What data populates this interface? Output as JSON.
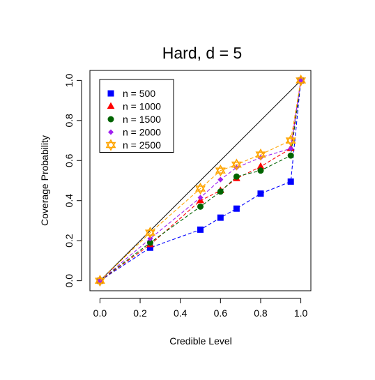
{
  "chart_data": {
    "type": "line",
    "title": "Hard, d = 5",
    "xlabel": "Credible Level",
    "ylabel": "Coverage Probability",
    "xlim": [
      -0.05,
      1.05
    ],
    "ylim": [
      -0.05,
      1.05
    ],
    "xticks": [
      "0.0",
      "0.2",
      "0.4",
      "0.6",
      "0.8",
      "1.0"
    ],
    "yticks": [
      "0.0",
      "0.2",
      "0.4",
      "0.6",
      "0.8",
      "1.0"
    ],
    "grid": false,
    "legend_position": "top-left",
    "reference_line": [
      [
        0,
        0
      ],
      [
        1,
        1
      ]
    ],
    "x": [
      0.0,
      0.25,
      0.5,
      0.6,
      0.68,
      0.8,
      0.95,
      1.0
    ],
    "series": [
      {
        "name": "n = 500",
        "color": "#0000ff",
        "marker": "square",
        "values": [
          0.0,
          0.165,
          0.255,
          0.315,
          0.36,
          0.435,
          0.495,
          1.0
        ]
      },
      {
        "name": "n = 1000",
        "color": "#ff0000",
        "marker": "triangle",
        "values": [
          0.0,
          0.18,
          0.4,
          0.45,
          0.51,
          0.57,
          0.66,
          1.0
        ]
      },
      {
        "name": "n = 1500",
        "color": "#006400",
        "marker": "circle",
        "values": [
          0.0,
          0.19,
          0.37,
          0.445,
          0.52,
          0.55,
          0.625,
          1.0
        ]
      },
      {
        "name": "n = 2000",
        "color": "#a020f0",
        "marker": "diamond",
        "values": [
          0.0,
          0.21,
          0.415,
          0.505,
          0.565,
          0.615,
          0.66,
          1.0
        ]
      },
      {
        "name": "n = 2500",
        "color": "#ffa500",
        "marker": "star",
        "values": [
          0.0,
          0.24,
          0.46,
          0.55,
          0.58,
          0.63,
          0.7,
          1.0
        ]
      }
    ]
  }
}
